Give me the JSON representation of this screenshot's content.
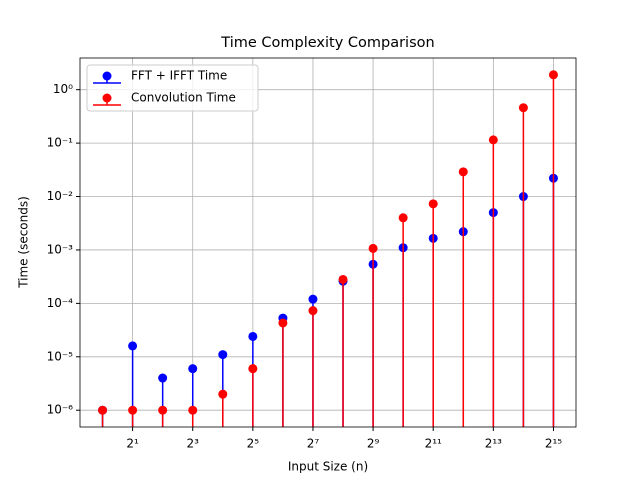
{
  "chart_data": {
    "type": "stem",
    "title": "Time Complexity Comparison",
    "x_label": "Input Size (n)",
    "y_label": "Time (seconds)",
    "x": [
      1,
      2,
      4,
      8,
      16,
      32,
      64,
      128,
      256,
      512,
      1024,
      2048,
      4096,
      8192,
      16384,
      32768
    ],
    "series": [
      {
        "name": "FFT + IFFT Time",
        "color": "#0000ff",
        "values": [
          1e-06,
          1.6e-05,
          4e-06,
          6e-06,
          1.1e-05,
          2.4e-05,
          5.3e-05,
          0.00012,
          0.00026,
          0.00054,
          0.0011,
          0.00165,
          0.0022,
          0.005,
          0.01,
          0.022
        ]
      },
      {
        "name": "Convolution Time",
        "color": "#ff0000",
        "values": [
          1e-06,
          1e-06,
          1e-06,
          1e-06,
          2e-06,
          6e-06,
          4.3e-05,
          7.3e-05,
          0.00028,
          0.00107,
          0.004,
          0.0073,
          0.029,
          0.115,
          0.46,
          1.9
        ]
      }
    ],
    "x_log_base": 2,
    "y_log_base": 10,
    "xlim": [
      0.5946,
      55109
    ],
    "ylim": [
      4.85e-07,
      3.92
    ],
    "xticks": [
      {
        "value": 2,
        "label": "2¹"
      },
      {
        "value": 8,
        "label": "2³"
      },
      {
        "value": 32,
        "label": "2⁵"
      },
      {
        "value": 128,
        "label": "2⁷"
      },
      {
        "value": 512,
        "label": "2⁹"
      },
      {
        "value": 2048,
        "label": "2¹¹"
      },
      {
        "value": 8192,
        "label": "2¹³"
      },
      {
        "value": 32768,
        "label": "2¹⁵"
      }
    ],
    "yticks": [
      {
        "value": 1e-06,
        "label": "10⁻⁶"
      },
      {
        "value": 1e-05,
        "label": "10⁻⁵"
      },
      {
        "value": 0.0001,
        "label": "10⁻⁴"
      },
      {
        "value": 0.001,
        "label": "10⁻³"
      },
      {
        "value": 0.01,
        "label": "10⁻²"
      },
      {
        "value": 0.1,
        "label": "10⁻¹"
      },
      {
        "value": 1,
        "label": "10⁰"
      }
    ],
    "grid": true,
    "legend": "upper left"
  }
}
